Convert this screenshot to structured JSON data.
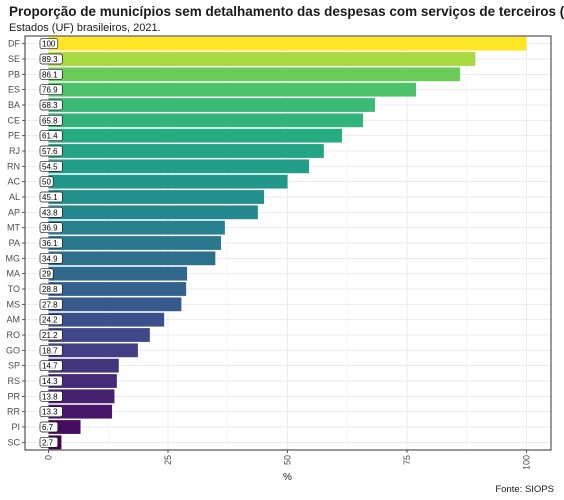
{
  "chart_data": {
    "type": "bar",
    "orientation": "horizontal",
    "title": "Proporção de municípios sem detalhamento das despesas com serviços de terceiros (PJ)",
    "subtitle": "Estados (UF) brasileiros, 2021.",
    "caption": "Fonte: SIOPS",
    "xlabel": "%",
    "ylabel": "",
    "xlim": [
      0,
      100
    ],
    "x_ticks": [
      "0",
      "25",
      "50",
      "75",
      "100"
    ],
    "grid": true,
    "legend": "none",
    "color_scale": "viridis",
    "categories": [
      "DF",
      "SE",
      "PB",
      "ES",
      "BA",
      "CE",
      "PE",
      "RJ",
      "RN",
      "AC",
      "AL",
      "AP",
      "MT",
      "PA",
      "MG",
      "MA",
      "TO",
      "MS",
      "AM",
      "RO",
      "GO",
      "SP",
      "RS",
      "PR",
      "RR",
      "PI",
      "SC"
    ],
    "values": [
      100,
      89.3,
      86.1,
      76.9,
      68.3,
      65.8,
      61.4,
      57.6,
      54.5,
      50,
      45.1,
      43.8,
      36.9,
      36.1,
      34.9,
      29,
      28.8,
      27.8,
      24.2,
      21.2,
      18.7,
      14.7,
      14.3,
      13.8,
      13.3,
      6.7,
      2.7
    ],
    "labels": [
      "100",
      "89.3",
      "86.1",
      "76.9",
      "68.3",
      "65.8",
      "61.4",
      "57.6",
      "54.5",
      "50",
      "45.1",
      "43.8",
      "36.9",
      "36.1",
      "34.9",
      "29",
      "28.8",
      "27.8",
      "24.2",
      "21.2",
      "18.7",
      "14.7",
      "14.3",
      "13.8",
      "13.3",
      "6.7",
      "2.7"
    ]
  }
}
